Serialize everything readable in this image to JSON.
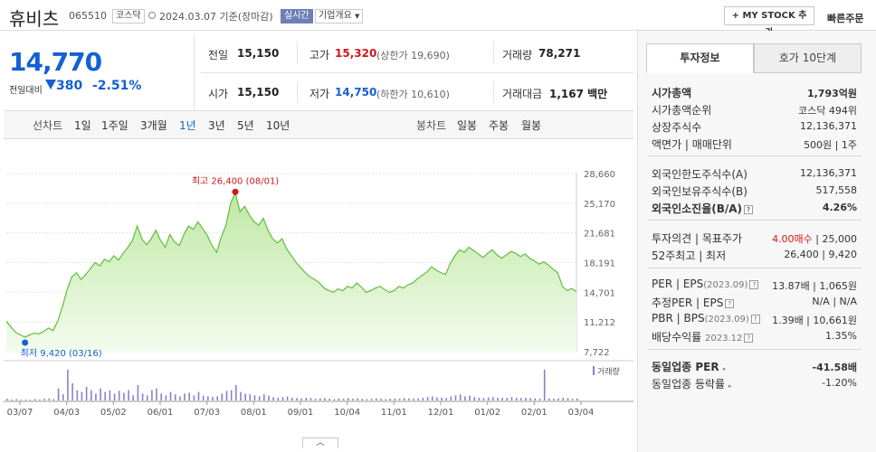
{
  "header": {
    "name": "휴비츠",
    "code": "065510",
    "market": "코스닥",
    "date_basis": "2024.03.07  기준(장마감)",
    "live": "실시간",
    "company_info": "기업개요",
    "mystock": "+ MY STOCK 추가",
    "quick_order": "빠른주문"
  },
  "price": {
    "current": "14,770",
    "change_label": "전일대비",
    "change": "380",
    "change_pct": "-2.51%"
  },
  "quote": {
    "prev_close_label": "전일",
    "prev_close": "15,150",
    "high_label": "고가",
    "high": "15,320",
    "upper_limit": "(상한가 19,690)",
    "volume_label": "거래량",
    "volume": "78,271",
    "open_label": "시가",
    "open": "15,150",
    "low_label": "저가",
    "low": "14,750",
    "lower_limit": "(하한가 10,610)",
    "value_label": "거래대금",
    "value": "1,167 백만"
  },
  "periods": {
    "line_chart": "선차트",
    "items": [
      "1일",
      "1주일",
      "3개월",
      "1년",
      "3년",
      "5년",
      "10년"
    ],
    "active": "1년",
    "candle_chart": "봉차트",
    "candle_items": [
      "일봉",
      "주봉",
      "월봉"
    ]
  },
  "chart_data": {
    "type": "area",
    "y_ticks": [
      "28,660",
      "25,170",
      "21,681",
      "18,191",
      "14,701",
      "11,212",
      "7,722"
    ],
    "ylim": [
      7722,
      28660
    ],
    "x_ticks": [
      "03/07",
      "04/03",
      "05/02",
      "06/01",
      "07/03",
      "08/01",
      "09/01",
      "10/04",
      "11/01",
      "12/01",
      "01/02",
      "02/01",
      "03/04"
    ],
    "series": [
      {
        "values": [
          11300,
          10600,
          10000,
          9700,
          9420,
          9700,
          9900,
          9800,
          10100,
          10500,
          10200,
          11300,
          13000,
          15000,
          16500,
          17000,
          16200,
          16800,
          17500,
          18200,
          17800,
          18600,
          18300,
          19000,
          18500,
          19300,
          20000,
          20800,
          22500,
          21000,
          20300,
          21000,
          22000,
          20800,
          20000,
          21500,
          20600,
          20200,
          21500,
          22500,
          22100,
          23000,
          22200,
          21400,
          20200,
          19400,
          21200,
          22600,
          25200,
          26400,
          24200,
          24800,
          23800,
          23000,
          22600,
          23400,
          22000,
          21000,
          20500,
          21000,
          19800,
          19000,
          18200,
          17600,
          17000,
          16500,
          16200,
          15800,
          15200,
          14900,
          14700,
          15100,
          14900,
          15400,
          15200,
          15800,
          15300,
          14700,
          14900,
          15200,
          15400,
          15000,
          14700,
          14900,
          15400,
          15200,
          15600,
          15800,
          16300,
          16700,
          17100,
          17700,
          17300,
          17000,
          16800,
          18100,
          19000,
          19700,
          19400,
          20000,
          19600,
          19200,
          18800,
          19300,
          19700,
          19100,
          18700,
          19100,
          19500,
          19300,
          18900,
          19200,
          18700,
          18400,
          18000,
          18300,
          17900,
          17400,
          17000,
          15400,
          14900,
          15150,
          14770
        ]
      }
    ],
    "annotations": {
      "high": "최고 26,400 (08/01)",
      "low": "최저 9,420 (03/16)"
    },
    "volume_label": "거래량",
    "volume_bars": [
      0.05,
      0.03,
      0.04,
      0.02,
      0.03,
      0.02,
      0.04,
      0.03,
      0.05,
      0.06,
      0.04,
      0.35,
      0.18,
      0.9,
      0.5,
      0.3,
      0.25,
      0.4,
      0.3,
      0.2,
      0.35,
      0.25,
      0.3,
      0.2,
      0.28,
      0.22,
      0.3,
      0.15,
      0.45,
      0.2,
      0.15,
      0.3,
      0.35,
      0.2,
      0.15,
      0.25,
      0.18,
      0.12,
      0.2,
      0.22,
      0.15,
      0.25,
      0.14,
      0.12,
      0.1,
      0.12,
      0.2,
      0.28,
      0.3,
      0.45,
      0.25,
      0.2,
      0.18,
      0.15,
      0.12,
      0.18,
      0.14,
      0.1,
      0.08,
      0.1,
      0.12,
      0.08,
      0.07,
      0.06,
      0.08,
      0.07,
      0.05,
      0.06,
      0.07,
      0.05,
      0.04,
      0.06,
      0.05,
      0.07,
      0.05,
      0.06,
      0.05,
      0.04,
      0.05,
      0.06,
      0.05,
      0.04,
      0.05,
      0.06,
      0.05,
      0.07,
      0.06,
      0.05,
      0.06,
      0.08,
      0.1,
      0.12,
      0.09,
      0.08,
      0.07,
      0.12,
      0.15,
      0.18,
      0.12,
      0.14,
      0.1,
      0.08,
      0.07,
      0.09,
      0.1,
      0.08,
      0.07,
      0.08,
      0.1,
      0.08,
      0.07,
      0.08,
      0.07,
      0.06,
      0.05,
      0.9,
      0.06,
      0.05,
      0.06,
      0.08,
      0.07,
      0.05,
      0.06
    ]
  },
  "panel": {
    "tab_invest": "투자정보",
    "tab_orderbook": "호가 10단계",
    "market_cap_label": "시가총액",
    "market_cap": "1,793억원",
    "rank_label": "시가총액순위",
    "rank": "코스닥 494위",
    "shares_label": "상장주식수",
    "shares": "12,136,371",
    "par_label": "액면가 | 매매단위",
    "par": "500원 | 1주",
    "foreign_limit_label": "외국인한도주식수(A)",
    "foreign_limit": "12,136,371",
    "foreign_hold_label": "외국인보유주식수(B)",
    "foreign_hold": "517,558",
    "foreign_ratio_label": "외국인소진율(B/A)",
    "foreign_ratio": "4.26%",
    "opinion_label": "투자의견 | 목표주가",
    "opinion": "4.00매수",
    "target": "| 25,000",
    "w52_label": "52주최고 | 최저",
    "w52": "26,400 | 9,420",
    "per_label": "PER | EPS",
    "per_period": "(2023.09)",
    "per": "13.87배 | 1,065원",
    "est_label": "추정PER | EPS",
    "est": "N/A | N/A",
    "pbr_label": "PBR | BPS",
    "pbr_period": "(2023.09)",
    "pbr": "1.39배 | 10,661원",
    "div_label": "배당수익률",
    "div_period": "2023.12",
    "div": "1.35%",
    "ind_per_label": "동일업종 PER",
    "ind_per": "-41.58배",
    "ind_chg_label": "동일업종 등락률",
    "ind_chg": "-1.20%"
  },
  "colors": {
    "up": "#d01818",
    "down": "#1560d2",
    "area_top": "#bfe8a4",
    "line": "#6cc04a"
  }
}
